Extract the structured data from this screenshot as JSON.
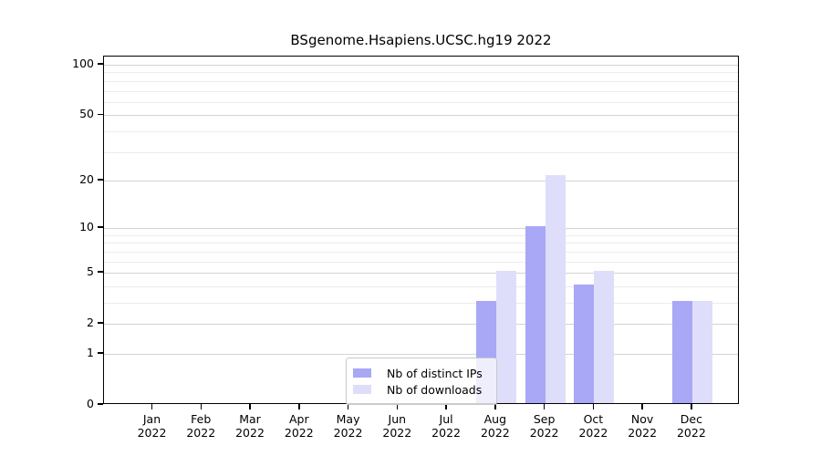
{
  "title": "BSgenome.Hsapiens.UCSC.hg19 2022",
  "chart_data": {
    "type": "bar",
    "title": "BSgenome.Hsapiens.UCSC.hg19 2022",
    "x_tick_labels": [
      {
        "month": "Jan",
        "year": "2022"
      },
      {
        "month": "Feb",
        "year": "2022"
      },
      {
        "month": "Mar",
        "year": "2022"
      },
      {
        "month": "Apr",
        "year": "2022"
      },
      {
        "month": "May",
        "year": "2022"
      },
      {
        "month": "Jun",
        "year": "2022"
      },
      {
        "month": "Jul",
        "year": "2022"
      },
      {
        "month": "Aug",
        "year": "2022"
      },
      {
        "month": "Sep",
        "year": "2022"
      },
      {
        "month": "Oct",
        "year": "2022"
      },
      {
        "month": "Nov",
        "year": "2022"
      },
      {
        "month": "Dec",
        "year": "2022"
      }
    ],
    "series": [
      {
        "name": "Nb of distinct IPs",
        "color": "#a8a8f6",
        "values": [
          0,
          0,
          0,
          0,
          0,
          0,
          0,
          3,
          10,
          4,
          0,
          3
        ]
      },
      {
        "name": "Nb of downloads",
        "color": "#dedefa",
        "values": [
          0,
          0,
          0,
          0,
          0,
          0,
          0,
          5,
          21,
          5,
          0,
          3
        ]
      }
    ],
    "y_scale": "log1p",
    "y_ticks": [
      0,
      1,
      2,
      5,
      10,
      20,
      50,
      100
    ],
    "y_minor_gridlines": [
      3,
      4,
      6,
      7,
      8,
      9,
      30,
      40,
      60,
      70,
      80,
      90
    ],
    "ylim": [
      0,
      112
    ],
    "grid": true,
    "legend_position": "inside-bottom-center"
  },
  "legend": {
    "items": [
      {
        "label": "Nb of distinct IPs",
        "color": "#a8a8f6"
      },
      {
        "label": "Nb of downloads",
        "color": "#dedefa"
      }
    ]
  },
  "axis": {
    "line_color": "#000000",
    "major_grid_color": "#d3d3d3",
    "minor_grid_color": "#ececec"
  }
}
